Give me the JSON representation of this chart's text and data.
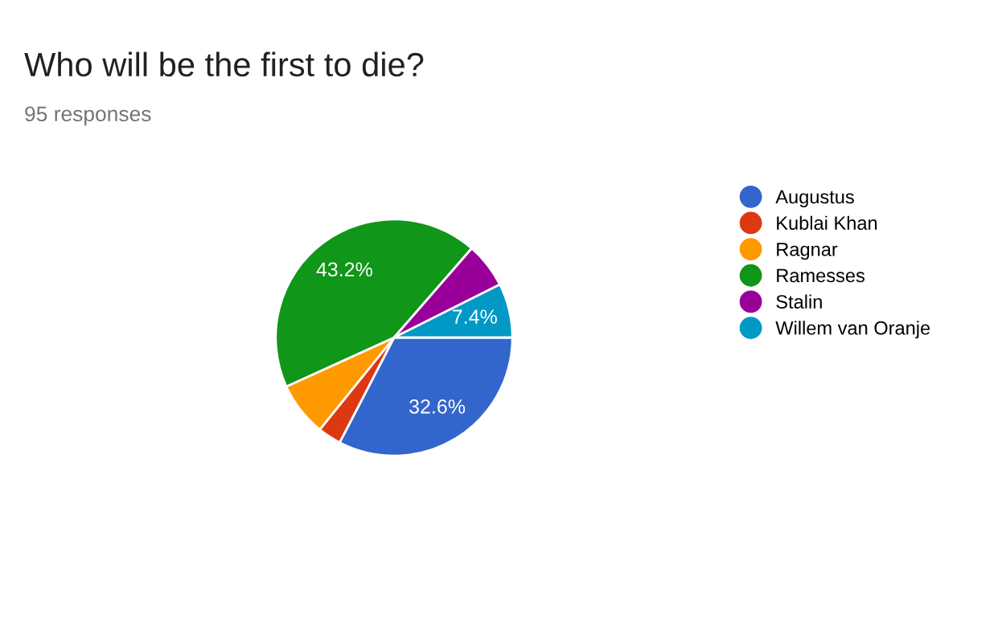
{
  "chart_data": {
    "type": "pie",
    "title": "Who will be the first to die?",
    "subtitle": "95 responses",
    "categories": [
      "Augustus",
      "Kublai Khan",
      "Ragnar",
      "Ramesses",
      "Stalin",
      "Willem van Oranje"
    ],
    "values": [
      32.6,
      3.2,
      7.4,
      43.2,
      6.2,
      7.4
    ],
    "value_labels": [
      "32.6%",
      null,
      null,
      "43.2%",
      null,
      "7.4%"
    ],
    "colors": [
      "#3366cc",
      "#dc3912",
      "#ff9900",
      "#109618",
      "#990099",
      "#0099c6"
    ],
    "legend": "right"
  }
}
